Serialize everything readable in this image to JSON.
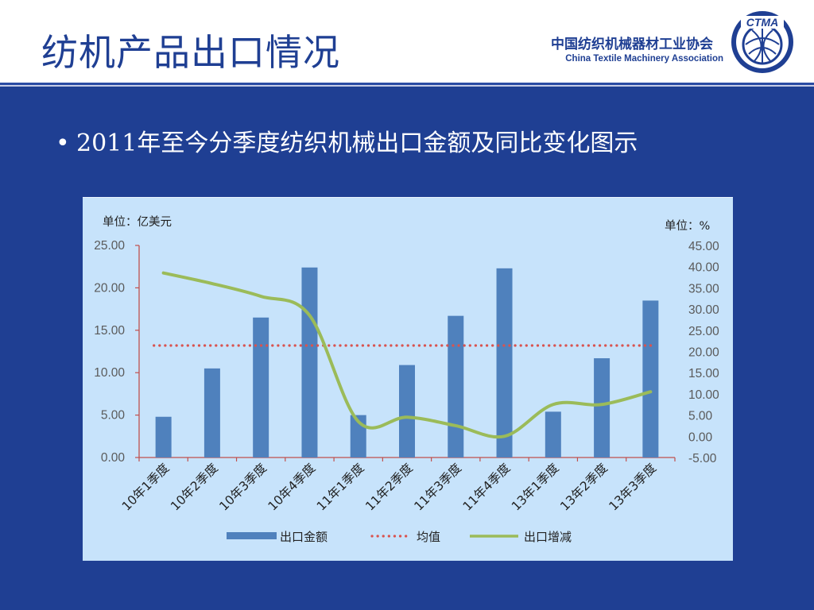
{
  "header": {
    "title": "纺机产品出口情况",
    "org_cn": "中国纺织机械器材工业协会",
    "org_en": "China Textile Machinery Association",
    "logo_text": "CTMA"
  },
  "bullet": {
    "text": "2011年至今分季度纺织机械出口金额及同比变化图示"
  },
  "colors": {
    "background": "#1f3f93",
    "chart_bg": "#c7e3fb",
    "bar": "#4f81bd",
    "average": "#d9534f",
    "growth": "#9bbb59"
  },
  "chart_data": {
    "type": "bar",
    "left_unit": "单位：亿美元",
    "right_unit": "单位：%",
    "categories": [
      "10年1季度",
      "10年2季度",
      "10年3季度",
      "10年4季度",
      "11年1季度",
      "11年2季度",
      "11年3季度",
      "11年4季度",
      "13年1季度",
      "13年2季度",
      "13年3季度"
    ],
    "y_left": {
      "ylim": [
        0,
        25
      ],
      "ticks": [
        "0.00",
        "5.00",
        "10.00",
        "15.00",
        "20.00",
        "25.00"
      ]
    },
    "y_right": {
      "ylim": [
        -5,
        45
      ],
      "ticks": [
        "-5.00",
        "0.00",
        "5.00",
        "10.00",
        "15.00",
        "20.00",
        "25.00",
        "30.00",
        "35.00",
        "40.00",
        "45.00"
      ]
    },
    "grid": false,
    "legend_position": "bottom",
    "series": [
      {
        "name": "出口金额",
        "type": "bar",
        "axis": "left",
        "values": [
          4.8,
          10.5,
          16.5,
          22.4,
          5.0,
          10.9,
          16.7,
          22.3,
          5.4,
          11.7,
          18.5
        ]
      },
      {
        "name": "均值",
        "type": "line-dotted",
        "axis": "left",
        "values": [
          13.2,
          13.2,
          13.2,
          13.2,
          13.2,
          13.2,
          13.2,
          13.2,
          13.2,
          13.2,
          13.2
        ]
      },
      {
        "name": "出口增减",
        "type": "line",
        "axis": "right",
        "values": [
          38.5,
          36.0,
          33.0,
          28.5,
          3.5,
          4.5,
          2.5,
          0.0,
          7.5,
          7.5,
          10.5
        ]
      }
    ]
  }
}
